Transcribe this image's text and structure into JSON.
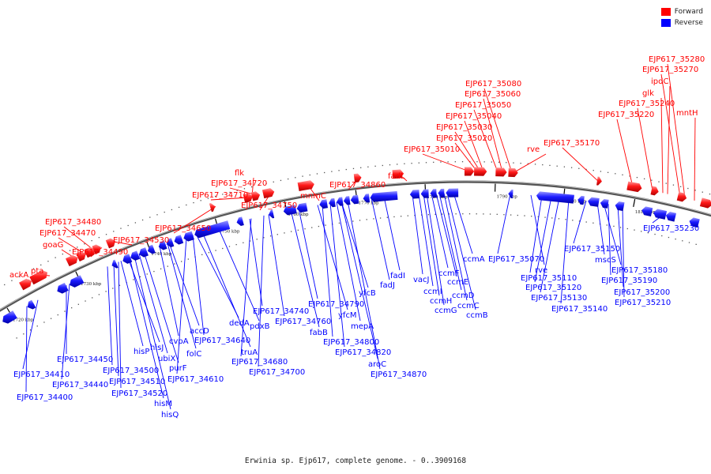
{
  "legend": {
    "forward_label": "Forward",
    "reverse_label": "Reverse",
    "forward_color": "#ff0000",
    "reverse_color": "#0000ff"
  },
  "caption": "Erwinia sp. Ejp617, complete genome. - 0..3909168",
  "ticks": [
    "1720 kbp",
    "1730 kbp",
    "1740 kbp",
    "1750 kbp",
    "1760 kbp",
    "1770 kbp",
    "1780 kbp",
    "1790 kbp",
    "1800 kbp",
    "1810 kbp"
  ],
  "forward_labels": [
    "ackA",
    "pta",
    "goaG",
    "EJP617_34470",
    "EJP617_34480",
    "EJP617_34490",
    "EJP617_34530",
    "EJP617_34650",
    "EJP617_34710",
    "EJP617_34720",
    "flk",
    "EJP617_34750",
    "mnmC",
    "EJP617_34860",
    "fadL",
    "EJP617_35010",
    "EJP617_35020",
    "EJP617_35030",
    "EJP617_35040",
    "EJP617_35050",
    "EJP617_35060",
    "EJP617_35080",
    "rve",
    "EJP617_35170",
    "EJP617_35220",
    "EJP617_35240",
    "glk",
    "ipdC",
    "EJP617_35270",
    "EJP617_35280",
    "mntH"
  ],
  "reverse_labels": [
    "EJP617_34400",
    "EJP617_34410",
    "EJP617_34440",
    "EJP617_34450",
    "EJP617_34500",
    "EJP617_34510",
    "EJP617_34520",
    "hisP",
    "hisJ",
    "hisM",
    "hisQ",
    "ubiX",
    "purF",
    "cvpA",
    "folC",
    "accD",
    "EJP617_34610",
    "EJP617_34640",
    "dedA",
    "truA",
    "pdxB",
    "EJP617_34680",
    "EJP617_34700",
    "EJP617_34740",
    "EJP617_34760",
    "fabB",
    "EJP617_34790",
    "yfcM",
    "EJP617_34800",
    "EJP617_34820",
    "mepA",
    "aroC",
    "yfcB",
    "EJP617_34870",
    "fadJ",
    "fadI",
    "vacJ",
    "ccmI",
    "ccmH",
    "ccmG",
    "ccmF",
    "ccmE",
    "ccmD",
    "ccmC",
    "ccmB",
    "ccmA",
    "EJP617_35070",
    "rve",
    "EJP617_35110",
    "EJP617_35120",
    "EJP617_35130",
    "EJP617_35140",
    "EJP617_35150",
    "mscS",
    "EJP617_35180",
    "EJP617_35190",
    "EJP617_35200",
    "EJP617_35210",
    "EJP617_35230"
  ]
}
